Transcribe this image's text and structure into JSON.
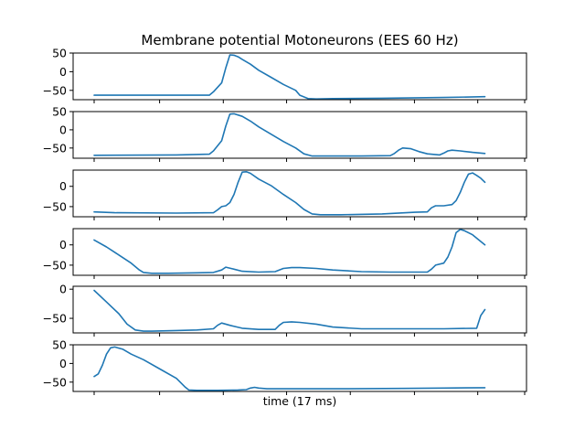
{
  "chart_data": {
    "type": "line",
    "title": "Membrane potential Motoneurons (EES 60 Hz)",
    "xlabel": "time (17 ms)",
    "series_color": "#1f77b4",
    "xlim": [
      0,
      100
    ],
    "panels": [
      {
        "name": "panel-1",
        "ylim": [
          -75,
          50
        ],
        "yticks": [
          50,
          0,
          -50
        ],
        "yticklabels": [
          "50",
          "0",
          "−50"
        ],
        "x": [
          0,
          20,
          28,
          29,
          31,
          32,
          33,
          34,
          35,
          36,
          38,
          40,
          43,
          46,
          49,
          50,
          52,
          54,
          58,
          70,
          85,
          95
        ],
        "y": [
          -63,
          -63,
          -63,
          -54,
          -30,
          10,
          45,
          44,
          40,
          33,
          20,
          4,
          -15,
          -34,
          -50,
          -63,
          -72,
          -73,
          -72,
          -71,
          -69,
          -67
        ]
      },
      {
        "name": "panel-2",
        "ylim": [
          -78,
          50
        ],
        "yticks": [
          50,
          0,
          -50
        ],
        "yticklabels": [
          "50",
          "0",
          "−50"
        ],
        "x": [
          0,
          20,
          28,
          29,
          31,
          32,
          33,
          34,
          36,
          38,
          40,
          43,
          46,
          49,
          51,
          53,
          57,
          65,
          72,
          73,
          74,
          75,
          77,
          79,
          81,
          84,
          85,
          86,
          87,
          89,
          92,
          95
        ],
        "y": [
          -70,
          -69,
          -67,
          -58,
          -30,
          10,
          43,
          44,
          37,
          24,
          8,
          -12,
          -32,
          -50,
          -66,
          -72,
          -72,
          -72,
          -71,
          -65,
          -56,
          -50,
          -52,
          -60,
          -66,
          -69,
          -64,
          -58,
          -56,
          -58,
          -62,
          -65
        ]
      },
      {
        "name": "panel-3",
        "ylim": [
          -75,
          40
        ],
        "yticks": [
          0,
          -50
        ],
        "yticklabels": [
          "0",
          "−50"
        ],
        "x": [
          0,
          5,
          20,
          29,
          30,
          31,
          32,
          33,
          34,
          35,
          36,
          37,
          38,
          40,
          43,
          46,
          49,
          51,
          53,
          55,
          60,
          70,
          78,
          81,
          82,
          83,
          85,
          87,
          88,
          89,
          90,
          91,
          92,
          93,
          94,
          95
        ],
        "y": [
          -63,
          -65,
          -66,
          -65,
          -58,
          -50,
          -48,
          -40,
          -20,
          10,
          35,
          36,
          32,
          18,
          2,
          -20,
          -40,
          -57,
          -68,
          -70,
          -70,
          -68,
          -64,
          -63,
          -53,
          -48,
          -48,
          -45,
          -35,
          -15,
          10,
          30,
          33,
          27,
          20,
          10
        ]
      },
      {
        "name": "panel-4",
        "ylim": [
          -75,
          40
        ],
        "yticks": [
          0,
          -50
        ],
        "yticklabels": [
          "0",
          "−50"
        ],
        "x": [
          0,
          3,
          6,
          9,
          11,
          12,
          14,
          18,
          25,
          29,
          31,
          32,
          34,
          36,
          40,
          44,
          45,
          46,
          48,
          50,
          54,
          58,
          65,
          72,
          81,
          82,
          83,
          85,
          86,
          87,
          88,
          89,
          90,
          92,
          95
        ],
        "y": [
          12,
          -5,
          -25,
          -45,
          -62,
          -68,
          -70,
          -70,
          -69,
          -68,
          -62,
          -55,
          -60,
          -65,
          -67,
          -66,
          -62,
          -58,
          -56,
          -56,
          -58,
          -62,
          -66,
          -67,
          -67,
          -60,
          -50,
          -45,
          -30,
          -5,
          30,
          38,
          35,
          25,
          0
        ]
      },
      {
        "name": "panel-5",
        "ylim": [
          -75,
          5
        ],
        "yticks": [
          0,
          -50
        ],
        "yticklabels": [
          "0",
          "−50"
        ],
        "x": [
          0,
          3,
          6,
          8,
          10,
          12,
          14,
          20,
          25,
          29,
          30,
          31,
          33,
          36,
          40,
          44,
          45,
          46,
          48,
          50,
          54,
          58,
          65,
          75,
          85,
          93,
          94,
          95
        ],
        "y": [
          -2,
          -22,
          -42,
          -60,
          -70,
          -72,
          -72,
          -71,
          -70,
          -68,
          -62,
          -58,
          -62,
          -67,
          -69,
          -69,
          -62,
          -57,
          -56,
          -57,
          -60,
          -65,
          -68,
          -68,
          -68,
          -67,
          -45,
          -35
        ]
      },
      {
        "name": "panel-6",
        "ylim": [
          -75,
          50
        ],
        "yticks": [
          50,
          0,
          -50
        ],
        "yticklabels": [
          "50",
          "0",
          "−50"
        ],
        "x": [
          0,
          1,
          2,
          3,
          4,
          5,
          7,
          9,
          12,
          16,
          20,
          22,
          23,
          25,
          27,
          30,
          35,
          37,
          38,
          39,
          40,
          42,
          50,
          60,
          75,
          85,
          95
        ],
        "y": [
          -35,
          -28,
          -5,
          25,
          42,
          44,
          38,
          25,
          10,
          -15,
          -40,
          -62,
          -71,
          -72,
          -72,
          -72,
          -71,
          -70,
          -66,
          -64,
          -66,
          -68,
          -68,
          -68,
          -67,
          -66,
          -65
        ]
      }
    ]
  }
}
